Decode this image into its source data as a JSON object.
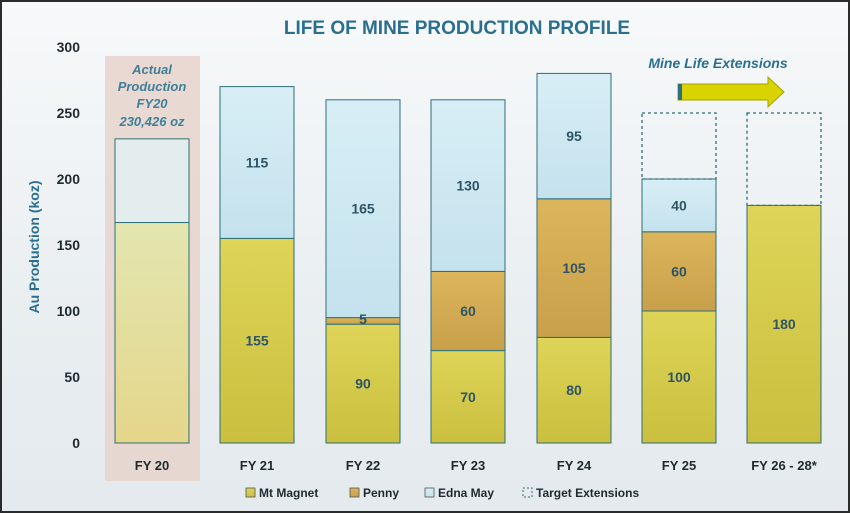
{
  "chart_data": {
    "type": "bar",
    "stacked": true,
    "title": "LIFE OF MINE PRODUCTION PROFILE",
    "ylabel": "Au Production (koz)",
    "xlabel": "",
    "ylim": [
      0,
      300
    ],
    "yticks": [
      "0",
      "50",
      "100",
      "150",
      "200",
      "250",
      "300"
    ],
    "grid": false,
    "legend_position": "bottom",
    "categories": [
      "FY 20",
      "FY 21",
      "FY 22",
      "FY 23",
      "FY 24",
      "FY 25",
      "FY 26 - 28*"
    ],
    "actual": {
      "category": "FY 20",
      "lower_value": 167,
      "total": 230.4,
      "annotation": [
        "Actual",
        "Production",
        "FY20",
        "230,426 oz"
      ]
    },
    "series": [
      {
        "name": "Mt Magnet",
        "values": [
          null,
          155,
          90,
          70,
          80,
          100,
          180
        ],
        "color": "#d6cb55"
      },
      {
        "name": "Penny",
        "values": [
          null,
          0,
          5,
          60,
          105,
          60,
          0
        ],
        "color": "#d3ad57"
      },
      {
        "name": "Edna May",
        "values": [
          null,
          115,
          165,
          130,
          95,
          40,
          0
        ],
        "color": "#cfe8f1"
      }
    ],
    "data_labels": [
      [
        null,
        null,
        null
      ],
      [
        "155",
        null,
        "115"
      ],
      [
        "90",
        "5",
        "165"
      ],
      [
        "70",
        "60",
        "130"
      ],
      [
        "80",
        "105",
        "95"
      ],
      [
        "100",
        "60",
        "40"
      ],
      [
        "180",
        null,
        null
      ]
    ],
    "target_extensions": {
      "name": "Target Extensions",
      "values": [
        null,
        null,
        null,
        null,
        null,
        50,
        70
      ]
    },
    "extension_callout": "Mine Life Extensions",
    "legend": [
      "Mt Magnet",
      "Penny",
      "Edna May",
      "Target Extensions"
    ],
    "colors": {
      "title": "#2b6f8f",
      "edge": "#2e6f78",
      "arrow": "#d9d300",
      "actual_panel": "#e8d7cf"
    }
  }
}
